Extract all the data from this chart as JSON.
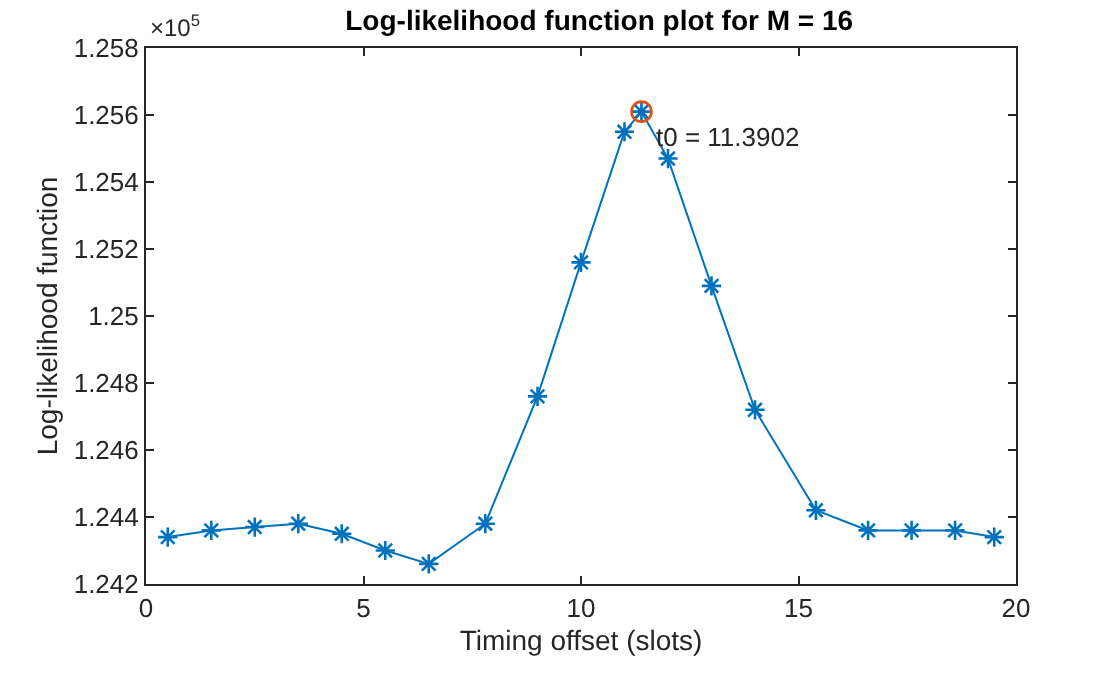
{
  "chart_data": {
    "type": "line",
    "title": "Log-likelihood function plot for M = 16",
    "xlabel": "Timing offset (slots)",
    "ylabel": "Log-likelihood function",
    "annotations": [
      "×10$^{5}$"
    ],
    "series": [
      {
        "color": "#0072bd",
        "marker": "cross",
        "x": [
          0.5,
          1.5,
          2.5,
          3.5,
          4.5,
          5.5,
          6.5,
          7.8,
          9.0,
          10.0,
          11.0,
          11.39,
          12.0,
          13.0,
          14.0,
          15.4,
          16.6,
          17.6,
          18.6,
          19.5
        ],
        "values": [
          1.2434,
          1.2436,
          1.2437,
          1.2438,
          1.2435,
          1.243,
          1.2426,
          1.2438,
          1.2476,
          1.2516,
          1.2555,
          1.2561,
          1.2547,
          1.2509,
          1.2472,
          1.2442,
          1.2436,
          1.2436,
          1.2436,
          1.2434
        ]
      },
      {
        "type": "scatter",
        "color": "#d95319",
        "marker": "circle",
        "x": [
          11.3902
        ],
        "values": [
          1.2561
        ],
        "value_labels": [
          "t0 = 11.3902"
        ]
      }
    ],
    "xlim": [
      0,
      20
    ],
    "xticks": [
      0,
      5,
      10,
      15,
      20
    ],
    "ylim": [
      1.242,
      1.258
    ],
    "yticks": [
      1.242,
      1.244,
      1.246,
      1.248,
      1.25,
      1.252,
      1.254,
      1.256,
      1.258
    ],
    "tick_labels": true
  }
}
